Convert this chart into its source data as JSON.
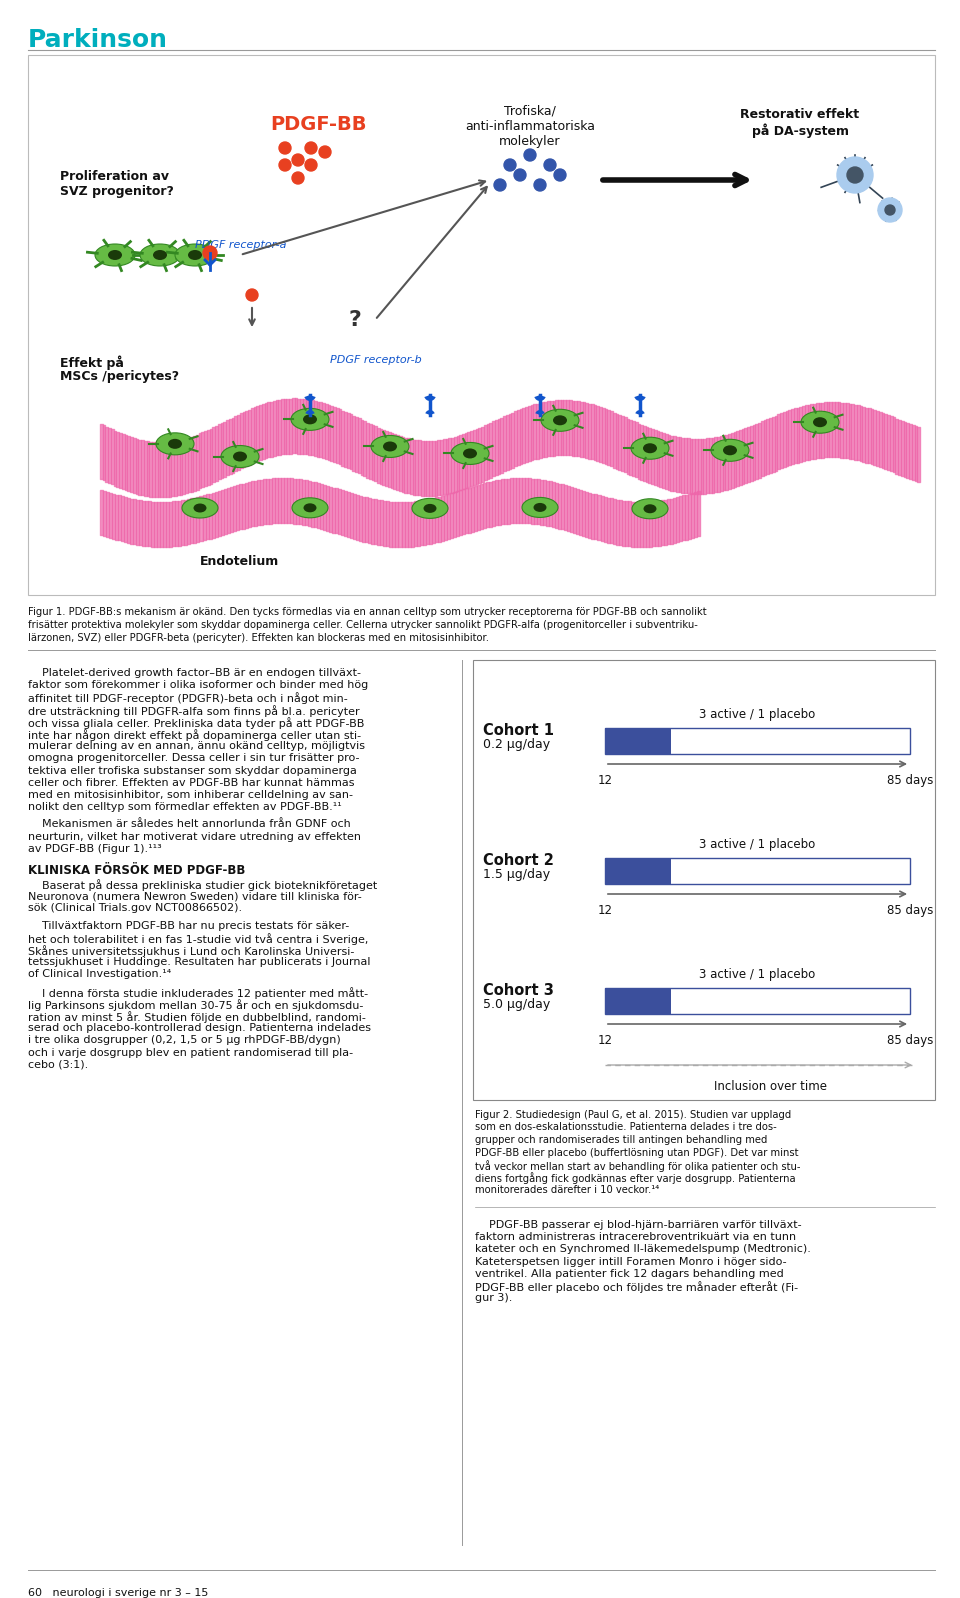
{
  "title": "Parkinson",
  "title_color": "#00AEBD",
  "title_fontsize": 18,
  "bg_color": "#FFFFFF",
  "page_width": 9.6,
  "page_height": 15.98,
  "figure_caption_1": "Figur 1. PDGF-BB:s mekanism är okänd. Den tycks förmedlas via en annan celltyp som utrycker receptorerna för PDGF-BB och sannolikt\nfrisätter protektiva molekyler som skyddar dopaminerga celler. Cellerna utrycker sannolikt PDGFR-alfa (progenitorceller i subventriku-\nlärzonen, SVZ) eller PDGFR-beta (pericyter). Effekten kan blockeras med en mitosisinhibitor.",
  "left_col_text_1_lines": [
    "    Platelet-derived growth factor–BB är en endogen tillväxt-",
    "faktor som förekommer i olika isoformer och binder med hög",
    "affinitet till PDGF-receptor (PDGFR)-beta och i något min-",
    "dre utsträckning till PDGFR-alfa som finns på bl.a. pericyter",
    "och vissa gliala celler. Prekliniska data tyder på att PDGF-BB",
    "inte har någon direkt effekt på dopaminerga celler utan sti-",
    "mulerar delning av en annan, ännu okänd celltyp, möjligtvis",
    "omogna progenitorceller. Dessa celler i sin tur frisätter pro-",
    "tektiva eller trofiska substanser som skyddar dopaminerga",
    "celler och fibrer. Effekten av PDGF-BB har kunnat hämmas",
    "med en mitosisinhibitor, som inhiberar celldelning av san-",
    "nolikt den celltyp som förmedlar effekten av PDGF-BB.¹¹"
  ],
  "left_col_text_2_lines": [
    "    Mekanismen är således helt annorlunda från GDNF och",
    "neurturin, vilket har motiverat vidare utredning av effekten",
    "av PDGF-BB (Figur 1).¹¹³"
  ],
  "left_col_heading": "KLINISKA FÖRSÖK MED PDGF-BB",
  "left_col_text_3_lines": [
    "    Baserat på dessa prekliniska studier gick bioteknikföretaget",
    "Neuronova (numera Newron Sweden) vidare till kliniska för-",
    "sök (Clinical Trials.gov NCT00866502)."
  ],
  "left_col_text_4_lines": [
    "    Tillväxtfaktorn PDGF-BB har nu precis testats för säker-",
    "het och tolerabilitet i en fas 1-studie vid två centra i Sverige,",
    "Skånes universitetssjukhus i Lund och Karolinska Universi-",
    "tetssjukhuset i Huddinge. Resultaten har publicerats i Journal",
    "of Clinical Investigation.¹⁴"
  ],
  "left_col_text_5_lines": [
    "    I denna första studie inkluderades 12 patienter med mått-",
    "lig Parkinsons sjukdom mellan 30-75 år och en sjukdomsdu-",
    "ration av minst 5 år. Studien följde en dubbelblind, randomi-",
    "serad och placebo-kontrollerad design. Patienterna indelades",
    "i tre olika dosgrupper (0,2, 1,5 or 5 µg rhPDGF-BB/dygn)",
    "och i varje dosgrupp blev en patient randomiserad till pla-",
    "cebo (3:1)."
  ],
  "right_col_text_fig2_lines": [
    "Figur 2. Studiedesign (Paul G, et al. 2015). Studien var upplagd",
    "som en dos-eskalationsstudie. Patienterna delades i tre dos-",
    "grupper och randomiserades till antingen behandling med",
    "PDGF-BB eller placebo (buffertlösning utan PDGF). Det var minst",
    "två veckor mellan start av behandling för olika patienter och stu-",
    "diens fortgång fick godkännas efter varje dosgrupp. Patienterna",
    "monitorerades därefter i 10 veckor.¹⁴"
  ],
  "right_col_text_last_lines": [
    "    PDGF-BB passerar ej blod-hjärn-barriären varför tillväxt-",
    "faktorn administreras intracerebroventrikuärt via en tunn",
    "kateter och en Synchromed II-läkemedelspump (Medtronic).",
    "Kateterspetsen ligger intill Foramen Monro i höger sido-",
    "ventrikel. Alla patienter fick 12 dagars behandling med",
    "PDGF-BB eller placebo och följdes tre månader efteråt (Fi-",
    "gur 3)."
  ],
  "footer": "60   neurologi i sverige nr 3 – 15",
  "cohort_box": {
    "cohorts": [
      {
        "name": "Cohort 1",
        "dose": "0.2 µg/day"
      },
      {
        "name": "Cohort 2",
        "dose": "1.5 µg/day"
      },
      {
        "name": "Cohort 3",
        "dose": "5.0 µg/day"
      }
    ],
    "label": "3 active / 1 placebo",
    "bottom_label": "Inclusion over time",
    "active_color": "#3B4F9C",
    "placebo_color": "#FFFFFF",
    "bar_edge_color": "#3B4F9C"
  },
  "divider_color": "#999999",
  "text_color": "#111111",
  "body_fontsize": 8.0,
  "caption_fontsize": 7.2,
  "heading_fontsize": 8.5
}
